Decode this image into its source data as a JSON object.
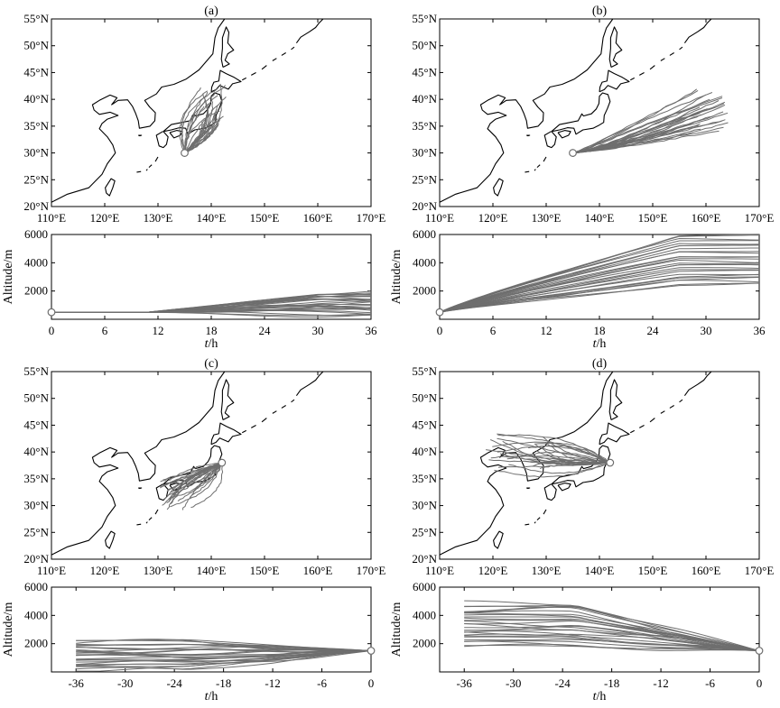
{
  "chart_data": [
    {
      "panel": "a",
      "type": "trajectory-map",
      "title": "(a)",
      "x_ticks": [
        "110°E",
        "120°E",
        "130°E",
        "140°E",
        "150°E",
        "160°E",
        "170°E"
      ],
      "y_ticks": [
        "20°N",
        "25°N",
        "30°N",
        "35°N",
        "40°N",
        "45°N",
        "50°N",
        "55°N"
      ],
      "xlim": [
        110,
        170
      ],
      "ylim": [
        20,
        55
      ],
      "origin": {
        "lon": 135,
        "lat": 30
      },
      "direction": "forward",
      "trajectory_count": 27,
      "endpoint_lon_range": [
        137,
        143
      ],
      "endpoint_lat_range": [
        35,
        43
      ]
    },
    {
      "panel": "a",
      "type": "line",
      "ylabel": "Altitude/m",
      "xlabel": "t/h",
      "x_ticks": [
        "0",
        "6",
        "12",
        "18",
        "24",
        "30",
        "36"
      ],
      "y_ticks": [
        "2000",
        "4000",
        "6000"
      ],
      "xlim": [
        0,
        36
      ],
      "ylim": [
        0,
        6000
      ],
      "start_altitude": 500,
      "end_altitude_range": [
        300,
        1900
      ]
    },
    {
      "panel": "b",
      "type": "trajectory-map",
      "title": "(b)",
      "x_ticks": [
        "110°E",
        "120°E",
        "130°E",
        "140°E",
        "150°E",
        "160°E",
        "170°E"
      ],
      "y_ticks": [
        "20°N",
        "25°N",
        "30°N",
        "35°N",
        "40°N",
        "45°N",
        "50°N",
        "55°N"
      ],
      "xlim": [
        110,
        170
      ],
      "ylim": [
        20,
        55
      ],
      "origin": {
        "lon": 135,
        "lat": 30
      },
      "direction": "forward",
      "trajectory_count": 27,
      "endpoint_lon_range": [
        157,
        165
      ],
      "endpoint_lat_range": [
        34,
        42
      ]
    },
    {
      "panel": "b",
      "type": "line",
      "ylabel": "Altitude/m",
      "xlabel": "t/h",
      "x_ticks": [
        "0",
        "6",
        "12",
        "18",
        "24",
        "30",
        "36"
      ],
      "y_ticks": [
        "2000",
        "4000",
        "6000"
      ],
      "xlim": [
        0,
        36
      ],
      "ylim": [
        0,
        6000
      ],
      "start_altitude": 500,
      "end_altitude_range": [
        2300,
        6000
      ]
    },
    {
      "panel": "c",
      "type": "trajectory-map",
      "title": "(c)",
      "x_ticks": [
        "110°E",
        "120°E",
        "130°E",
        "140°E",
        "150°E",
        "160°E",
        "170°E"
      ],
      "y_ticks": [
        "20°N",
        "25°N",
        "30°N",
        "35°N",
        "40°N",
        "45°N",
        "50°N",
        "55°N"
      ],
      "xlim": [
        110,
        170
      ],
      "ylim": [
        20,
        55
      ],
      "origin": {
        "lon": 142,
        "lat": 38
      },
      "direction": "backward",
      "trajectory_count": 27,
      "endpoint_lon_range": [
        129,
        137
      ],
      "endpoint_lat_range": [
        29,
        35
      ]
    },
    {
      "panel": "c",
      "type": "line",
      "ylabel": "Altitude/m",
      "xlabel": "t/h",
      "x_ticks": [
        "-36",
        "-30",
        "-24",
        "-18",
        "-12",
        "-6",
        "0"
      ],
      "y_ticks": [
        "2000",
        "4000",
        "6000"
      ],
      "xlim": [
        -39,
        0
      ],
      "ylim": [
        0,
        6000
      ],
      "start_altitude": 1500,
      "end_altitude_range": [
        100,
        2300
      ]
    },
    {
      "panel": "d",
      "type": "trajectory-map",
      "title": "(d)",
      "x_ticks": [
        "110°E",
        "120°E",
        "130°E",
        "140°E",
        "150°E",
        "160°E",
        "170°E"
      ],
      "y_ticks": [
        "20°N",
        "25°N",
        "30°N",
        "35°N",
        "40°N",
        "45°N",
        "50°N",
        "55°N"
      ],
      "xlim": [
        110,
        170
      ],
      "ylim": [
        20,
        55
      ],
      "origin": {
        "lon": 142,
        "lat": 38
      },
      "direction": "backward",
      "trajectory_count": 27,
      "endpoint_lon_range": [
        116,
        130
      ],
      "endpoint_lat_range": [
        36.5,
        43.5
      ]
    },
    {
      "panel": "d",
      "type": "line",
      "ylabel": "Altitude/m",
      "xlabel": "t/h",
      "x_ticks": [
        "-36",
        "-30",
        "-24",
        "-18",
        "-12",
        "-6",
        "0"
      ],
      "y_ticks": [
        "2000",
        "4000",
        "6000"
      ],
      "xlim": [
        -39,
        0
      ],
      "ylim": [
        0,
        6000
      ],
      "start_altitude": 1500,
      "end_altitude_range": [
        1700,
        4900
      ]
    }
  ],
  "colors": {
    "trajectory": "#6e6e6e",
    "coast": "#000000",
    "axes": "#000000"
  }
}
